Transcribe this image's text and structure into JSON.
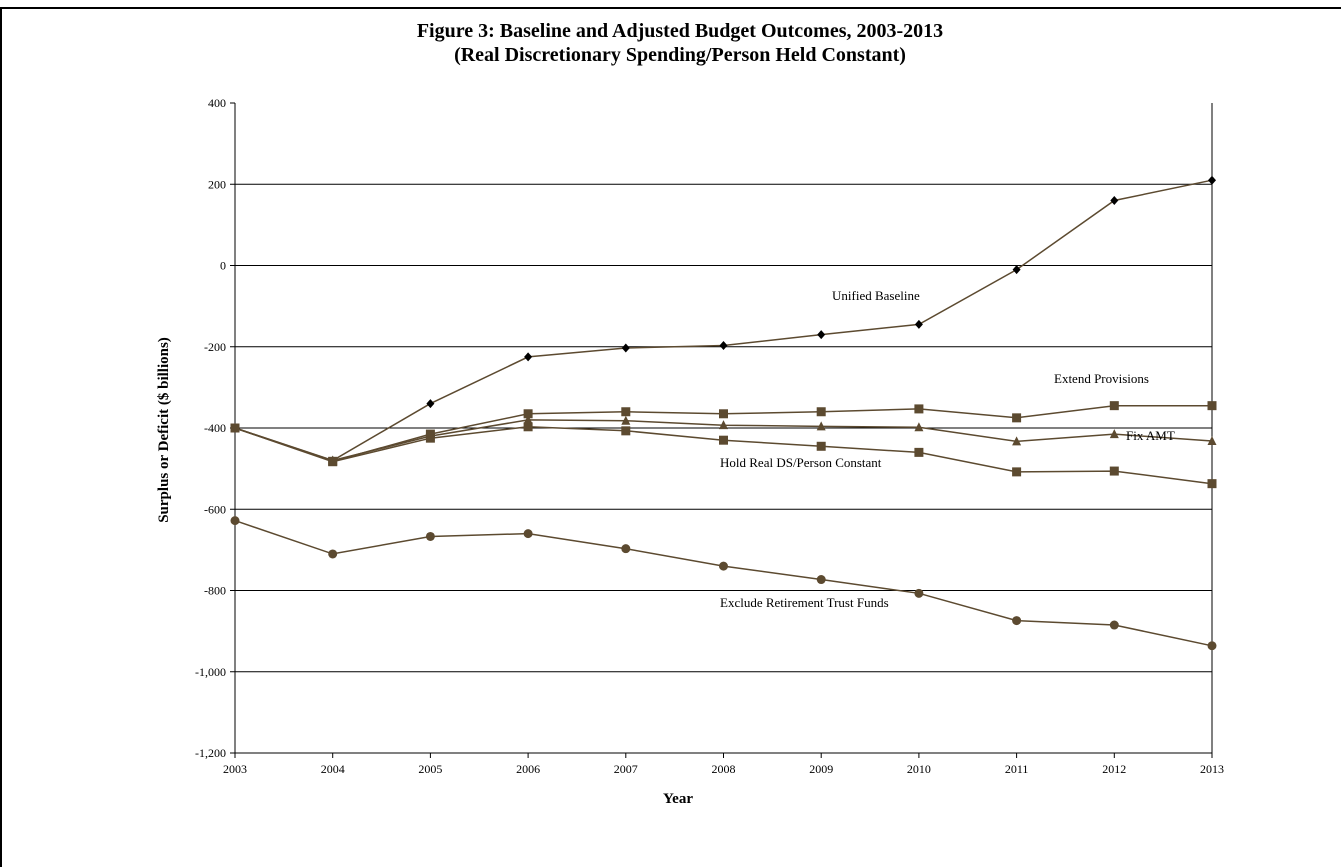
{
  "chart_data": {
    "type": "line",
    "title": "Figure 3: Baseline and Adjusted Budget Outcomes, 2003-2013",
    "subtitle": "(Real Discretionary Spending/Person Held Constant)",
    "xlabel": "Year",
    "ylabel": "Surplus or Deficit ($ billions)",
    "x": [
      2003,
      2004,
      2005,
      2006,
      2007,
      2008,
      2009,
      2010,
      2011,
      2012,
      2013
    ],
    "ylim": [
      -1200,
      400
    ],
    "yticks": [
      400,
      200,
      0,
      -200,
      -400,
      -600,
      -800,
      -1000,
      -1200
    ],
    "ytick_labels": [
      "400",
      "200",
      "0",
      "-200",
      "-400",
      "-600",
      "-800",
      "-1,000",
      "-1,200"
    ],
    "grid": "horizontal",
    "line_color": "#5c4a30",
    "series": [
      {
        "name": "Unified Baseline",
        "marker": "diamond",
        "color": "#000000",
        "values": [
          -400,
          -480,
          -340,
          -225,
          -203,
          -197,
          -170,
          -145,
          -10,
          160,
          210
        ]
      },
      {
        "name": "Extend Provisions",
        "marker": "square",
        "color": "#5c4a30",
        "values": [
          -400,
          -482,
          -415,
          -365,
          -360,
          -365,
          -360,
          -353,
          -375,
          -345,
          -345
        ]
      },
      {
        "name": "Fix AMT",
        "marker": "triangle",
        "color": "#5c4a30",
        "values": [
          -400,
          -480,
          -420,
          -380,
          -382,
          -393,
          -396,
          -398,
          -433,
          -415,
          -432
        ]
      },
      {
        "name": "Hold Real DS/Person Constant",
        "marker": "square",
        "color": "#5c4a30",
        "values": [
          -400,
          -483,
          -425,
          -397,
          -407,
          -430,
          -445,
          -460,
          -508,
          -506,
          -537
        ]
      },
      {
        "name": "Exclude Retirement Trust Funds",
        "marker": "circle",
        "color": "#5c4a30",
        "values": [
          -628,
          -710,
          -667,
          -660,
          -697,
          -740,
          -773,
          -807,
          -874,
          -885,
          -936
        ]
      }
    ],
    "annotations": [
      {
        "text": "Unified Baseline",
        "series": 0
      },
      {
        "text": "Extend Provisions",
        "series": 1
      },
      {
        "text": "Fix AMT",
        "series": 2
      },
      {
        "text": "Hold Real DS/Person Constant",
        "series": 3
      },
      {
        "text": "Exclude Retirement Trust Funds",
        "series": 4
      }
    ]
  }
}
